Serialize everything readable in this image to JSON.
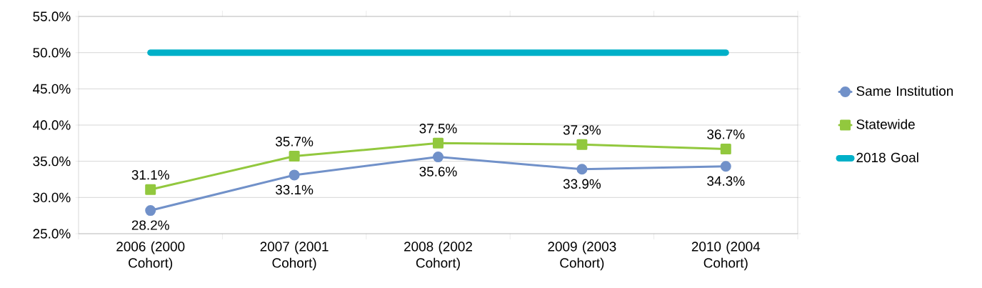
{
  "chart_data": {
    "type": "line",
    "categories": [
      "2006 (2000 Cohort)",
      "2007 (2001 Cohort)",
      "2008 (2002 Cohort)",
      "2009 (2003 Cohort)",
      "2010 (2004 Cohort)"
    ],
    "series": [
      {
        "name": "Same Institution",
        "color": "#7191c9",
        "marker": "circle",
        "values": [
          28.2,
          33.1,
          35.6,
          33.9,
          34.3
        ],
        "value_labels": [
          "28.2%",
          "33.1%",
          "35.6%",
          "33.9%",
          "34.3%"
        ]
      },
      {
        "name": "Statewide",
        "color": "#92c83e",
        "marker": "square",
        "values": [
          31.1,
          35.7,
          37.5,
          37.3,
          36.7
        ],
        "value_labels": [
          "31.1%",
          "35.7%",
          "37.5%",
          "37.3%",
          "36.7%"
        ]
      },
      {
        "name": "2018 Goal",
        "color": "#00b0c8",
        "marker": "none",
        "values": [
          50,
          50,
          50,
          50,
          50
        ]
      }
    ],
    "ylim": [
      25,
      55
    ],
    "yticks": [
      {
        "value": 25,
        "label": "25.0%"
      },
      {
        "value": 30,
        "label": "30.0%"
      },
      {
        "value": 35,
        "label": "35.0%"
      },
      {
        "value": 40,
        "label": "40.0%"
      },
      {
        "value": 45,
        "label": "45.0%"
      },
      {
        "value": 50,
        "label": "50.0%"
      },
      {
        "value": 55,
        "label": "55.0%"
      }
    ],
    "grid": "y",
    "legend": "right",
    "line_style": "solid"
  }
}
